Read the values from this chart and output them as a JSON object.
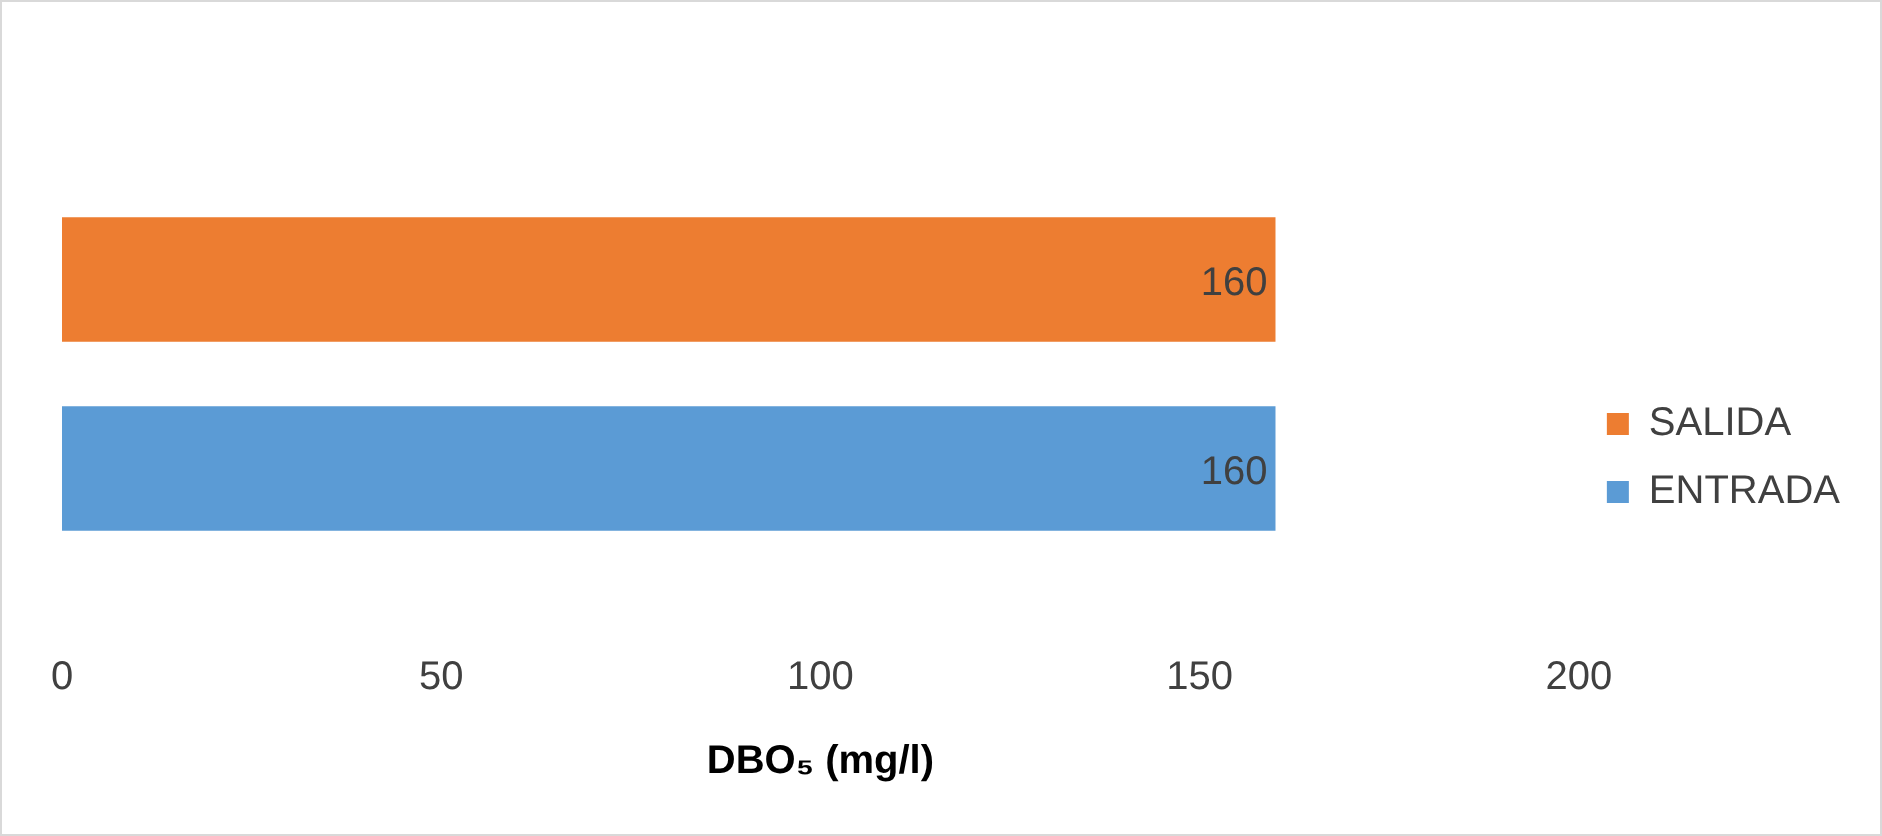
{
  "chart_data": {
    "type": "bar",
    "orientation": "horizontal",
    "xlabel": "DBO₅ (mg/l)",
    "categories": [
      null
    ],
    "series": [
      {
        "name": "SALIDA",
        "color": "#ed7d31",
        "values": [
          160
        ]
      },
      {
        "name": "ENTRADA",
        "color": "#5b9bd5",
        "values": [
          160
        ]
      }
    ],
    "xlim": [
      0,
      200
    ],
    "xticks": [
      0,
      50,
      100,
      150,
      200
    ],
    "data_labels": true,
    "grid": false,
    "legend": "right"
  }
}
